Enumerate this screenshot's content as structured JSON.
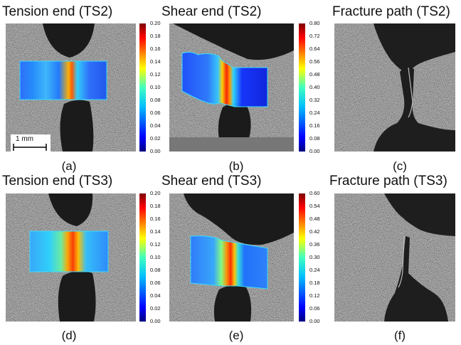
{
  "row1": {
    "tension_title": "Tension end (TS2)",
    "shear_title": "Shear end (TS2)",
    "fracture_title": "Fracture path (TS2)",
    "labels": [
      "(a)",
      "(b)",
      "(c)"
    ]
  },
  "row2": {
    "tension_title": "Tension end (TS3)",
    "shear_title": "Shear end (TS3)",
    "fracture_title": "Fracture path (TS3)",
    "labels": [
      "(d)",
      "(e)",
      "(f)"
    ]
  },
  "scale_bar": "1 mm",
  "colorbars": {
    "a": [
      "0.20",
      "0.18",
      "0.16",
      "0.14",
      "0.12",
      "0.10",
      "0.08",
      "0.06",
      "0.04",
      "0.02",
      "0.00"
    ],
    "b": [
      "0.80",
      "0.72",
      "0.64",
      "0.56",
      "0.48",
      "0.40",
      "0.32",
      "0.24",
      "0.16",
      "0.08",
      "0.00"
    ],
    "d": [
      "0.20",
      "0.18",
      "0.16",
      "0.14",
      "0.12",
      "0.10",
      "0.08",
      "0.06",
      "0.04",
      "0.02",
      "0.00"
    ],
    "e": [
      "0.60",
      "0.54",
      "0.48",
      "0.42",
      "0.36",
      "0.30",
      "0.24",
      "0.18",
      "0.12",
      "0.06",
      "0.00"
    ]
  },
  "colormap": "jet"
}
